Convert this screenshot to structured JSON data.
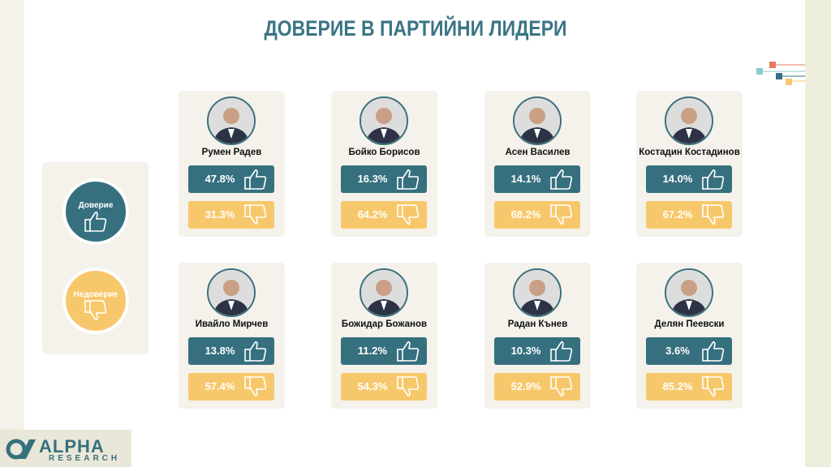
{
  "title": "ДОВЕРИЕ В ПАРТИЙНИ ЛИДЕРИ",
  "legend": {
    "trust": "Доверие",
    "distrust": "Недоверие"
  },
  "leaders": [
    {
      "name": "Румен Радев",
      "trust": "47.8%",
      "distrust": "31.3%"
    },
    {
      "name": "Бойко Борисов",
      "trust": "16.3%",
      "distrust": "64.2%"
    },
    {
      "name": "Асен Василев",
      "trust": "14.1%",
      "distrust": "68.2%"
    },
    {
      "name": "Костадин Костадинов",
      "trust": "14.0%",
      "distrust": "67.2%"
    },
    {
      "name": "Ивайло Мирчев",
      "trust": "13.8%",
      "distrust": "57.4%"
    },
    {
      "name": "Божидар Божанов",
      "trust": "11.2%",
      "distrust": "54.3%"
    },
    {
      "name": "Радан Кънев",
      "trust": "10.3%",
      "distrust": "52.9%"
    },
    {
      "name": "Делян Пеевски",
      "trust": "3.6%",
      "distrust": "85.2%"
    }
  ],
  "logo": {
    "name": "ALPHA",
    "sub": "RESEARCH"
  }
}
